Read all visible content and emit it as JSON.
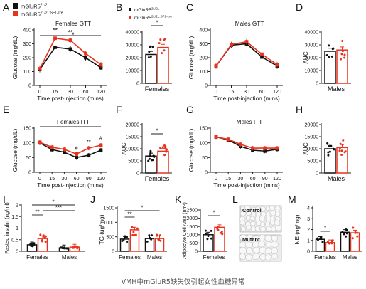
{
  "caption": "VMH中mGluR5缺失仅引起女性血糖异常",
  "legend": {
    "control": {
      "base": "mGluR5",
      "sup": "2L/2L"
    },
    "ko": {
      "base": "mGluR5",
      "sup": "2L/2L:SF1-cre"
    }
  },
  "colors": {
    "control": "#111111",
    "ko": "#e8321e",
    "axis": "#222222"
  },
  "chart_data": [
    {
      "panel": "A",
      "type": "line",
      "title": "Females GTT",
      "xlabel": "Time post-injection (mins)",
      "ylabel": "Glucose (mg/dL)",
      "x": [
        0,
        15,
        30,
        60,
        120
      ],
      "xticks": [
        "0",
        "15",
        "30",
        "60",
        "120"
      ],
      "ylim": [
        0,
        400
      ],
      "yticks": [
        0,
        100,
        200,
        300,
        400
      ],
      "series": [
        {
          "name": "mGluR5 2L/2L",
          "values": [
            115,
            275,
            262,
            200,
            128
          ]
        },
        {
          "name": "mGluR5 2L/2L:SF1-cre",
          "values": [
            120,
            340,
            325,
            230,
            150
          ]
        }
      ],
      "annotations": [
        "**",
        "**",
        "*"
      ]
    },
    {
      "panel": "B",
      "type": "bar",
      "xlabel": "Females",
      "ylabel": "",
      "ylim": [
        0,
        40000
      ],
      "yticks": [
        0,
        10000,
        20000,
        30000,
        40000
      ],
      "series": [
        {
          "name": "mGluR5 2L/2L",
          "values": [
            22500
          ]
        },
        {
          "name": "mGluR5 2L/2L:SF1-cre",
          "values": [
            28000
          ]
        }
      ],
      "annotations": [
        "*"
      ]
    },
    {
      "panel": "C",
      "type": "line",
      "title": "Males GTT",
      "xlabel": "Time post-injection (mins)",
      "ylabel": "Glucose (mg/dL)",
      "x": [
        0,
        15,
        30,
        60,
        120
      ],
      "xticks": [
        "0",
        "15",
        "30",
        "60",
        "120"
      ],
      "ylim": [
        0,
        400
      ],
      "yticks": [
        0,
        100,
        200,
        300,
        400
      ],
      "series": [
        {
          "name": "mGluR5 2L/2L",
          "values": [
            140,
            290,
            300,
            205,
            140
          ]
        },
        {
          "name": "mGluR5 2L/2L:SF1-cre",
          "values": [
            140,
            295,
            315,
            225,
            150
          ]
        }
      ]
    },
    {
      "panel": "D",
      "type": "bar",
      "xlabel": "Males",
      "ylabel": "AUC",
      "ylim": [
        0,
        40000
      ],
      "yticks": [
        0,
        10000,
        20000,
        30000,
        40000
      ],
      "series": [
        {
          "name": "mGluR5 2L/2L",
          "values": [
            25000
          ]
        },
        {
          "name": "mGluR5 2L/2L:SF1-cre",
          "values": [
            26000
          ]
        }
      ]
    },
    {
      "panel": "E",
      "type": "line",
      "title": "Females ITT",
      "xlabel": "Time post-injection (mins)",
      "ylabel": "Glucose (mg/dL)",
      "x": [
        0,
        15,
        30,
        60,
        90,
        120
      ],
      "xticks": [
        "0",
        "15",
        "30",
        "60",
        "90",
        "120"
      ],
      "ylim": [
        0,
        150
      ],
      "yticks": [
        0,
        50,
        100,
        150
      ],
      "series": [
        {
          "name": "mGluR5 2L/2L",
          "values": [
            100,
            77,
            68,
            50,
            58,
            75
          ]
        },
        {
          "name": "mGluR5 2L/2L:SF1-cre",
          "values": [
            102,
            85,
            78,
            62,
            82,
            92
          ]
        }
      ],
      "annotations": [
        "*",
        "#",
        "**",
        "#"
      ]
    },
    {
      "panel": "F",
      "type": "bar",
      "xlabel": "Females",
      "ylabel": "AUC",
      "ylim": [
        0,
        20000
      ],
      "yticks": [
        0,
        5000,
        10000,
        15000,
        20000
      ],
      "series": [
        {
          "name": "mGluR5 2L/2L",
          "values": [
            7000
          ]
        },
        {
          "name": "mGluR5 2L/2L:SF1-cre",
          "values": [
            9000
          ]
        }
      ],
      "annotations": [
        "*"
      ]
    },
    {
      "panel": "G",
      "type": "line",
      "title": "Males ITT",
      "xlabel": "Time post-injection (mins)",
      "ylabel": "Glucose (mg/dL)",
      "x": [
        0,
        15,
        30,
        60,
        90,
        120
      ],
      "xticks": [
        "0",
        "15",
        "30",
        "60",
        "90",
        "120"
      ],
      "ylim": [
        0,
        150
      ],
      "yticks": [
        0,
        50,
        100,
        150
      ],
      "series": [
        {
          "name": "mGluR5 2L/2L",
          "values": [
            120,
            110,
            88,
            75,
            72,
            78
          ]
        },
        {
          "name": "mGluR5 2L/2L:SF1-cre",
          "values": [
            120,
            112,
            95,
            82,
            82,
            82
          ]
        }
      ]
    },
    {
      "panel": "H",
      "type": "bar",
      "xlabel": "Males",
      "ylabel": "AUC",
      "ylim": [
        0,
        20000
      ],
      "yticks": [
        0,
        5000,
        10000,
        15000,
        20000
      ],
      "series": [
        {
          "name": "mGluR5 2L/2L",
          "values": [
            10000
          ]
        },
        {
          "name": "mGluR5 2L/2L:SF1-cre",
          "values": [
            10500
          ]
        }
      ]
    },
    {
      "panel": "I",
      "type": "bar",
      "ylabel": "Fasted insulin (ng/ml)",
      "categories": [
        "Females",
        "Males"
      ],
      "ylim": [
        0,
        2.0
      ],
      "yticks": [
        0,
        0.5,
        1.0,
        1.5,
        2.0
      ],
      "yticklabels": [
        "0",
        "0.5",
        "1",
        "1.5",
        "2"
      ],
      "series": [
        {
          "name": "mGluR5 2L/2L",
          "values": [
            0.28,
            0.15
          ]
        },
        {
          "name": "mGluR5 2L/2L:SF1-cre",
          "values": [
            0.55,
            0.18
          ]
        }
      ],
      "annotations": [
        "**",
        "*",
        "***"
      ]
    },
    {
      "panel": "J",
      "type": "bar",
      "ylabel": "TG (ug/mg)",
      "categories": [
        "Females",
        "Males"
      ],
      "ylim": [
        0,
        1500
      ],
      "yticks": [
        0,
        500,
        1000,
        1500
      ],
      "series": [
        {
          "name": "mGluR5 2L/2L",
          "values": [
            420,
            440
          ]
        },
        {
          "name": "mGluR5 2L/2L:SF1-cre",
          "values": [
            740,
            440
          ]
        }
      ],
      "annotations": [
        "**",
        "*"
      ]
    },
    {
      "panel": "K",
      "type": "bar",
      "ylabel": "Adipocyte Cell Area (um²)",
      "categories": [
        "Females"
      ],
      "ylim": [
        0,
        2500
      ],
      "yticks": [
        0,
        500,
        1000,
        1500,
        2000,
        2500
      ],
      "series": [
        {
          "name": "mGluR5 2L/2L",
          "values": [
            1000
          ]
        },
        {
          "name": "mGluR5 2L/2L:SF1-cre",
          "values": [
            1450
          ]
        }
      ],
      "annotations": [
        "*"
      ]
    },
    {
      "panel": "L",
      "type": "image",
      "labels": [
        "Control",
        "Mutant"
      ]
    },
    {
      "panel": "M",
      "type": "bar",
      "ylabel": "NE (ng/mg)",
      "categories": [
        "Females",
        "Males"
      ],
      "ylim": [
        0,
        4
      ],
      "yticks": [
        0,
        1,
        2,
        3,
        4
      ],
      "series": [
        {
          "name": "mGluR5 2L/2L",
          "values": [
            1.1,
            1.75
          ]
        },
        {
          "name": "mGluR5 2L/2L:SF1-cre",
          "values": [
            0.8,
            1.7
          ]
        }
      ],
      "annotations": [
        "*"
      ]
    }
  ]
}
